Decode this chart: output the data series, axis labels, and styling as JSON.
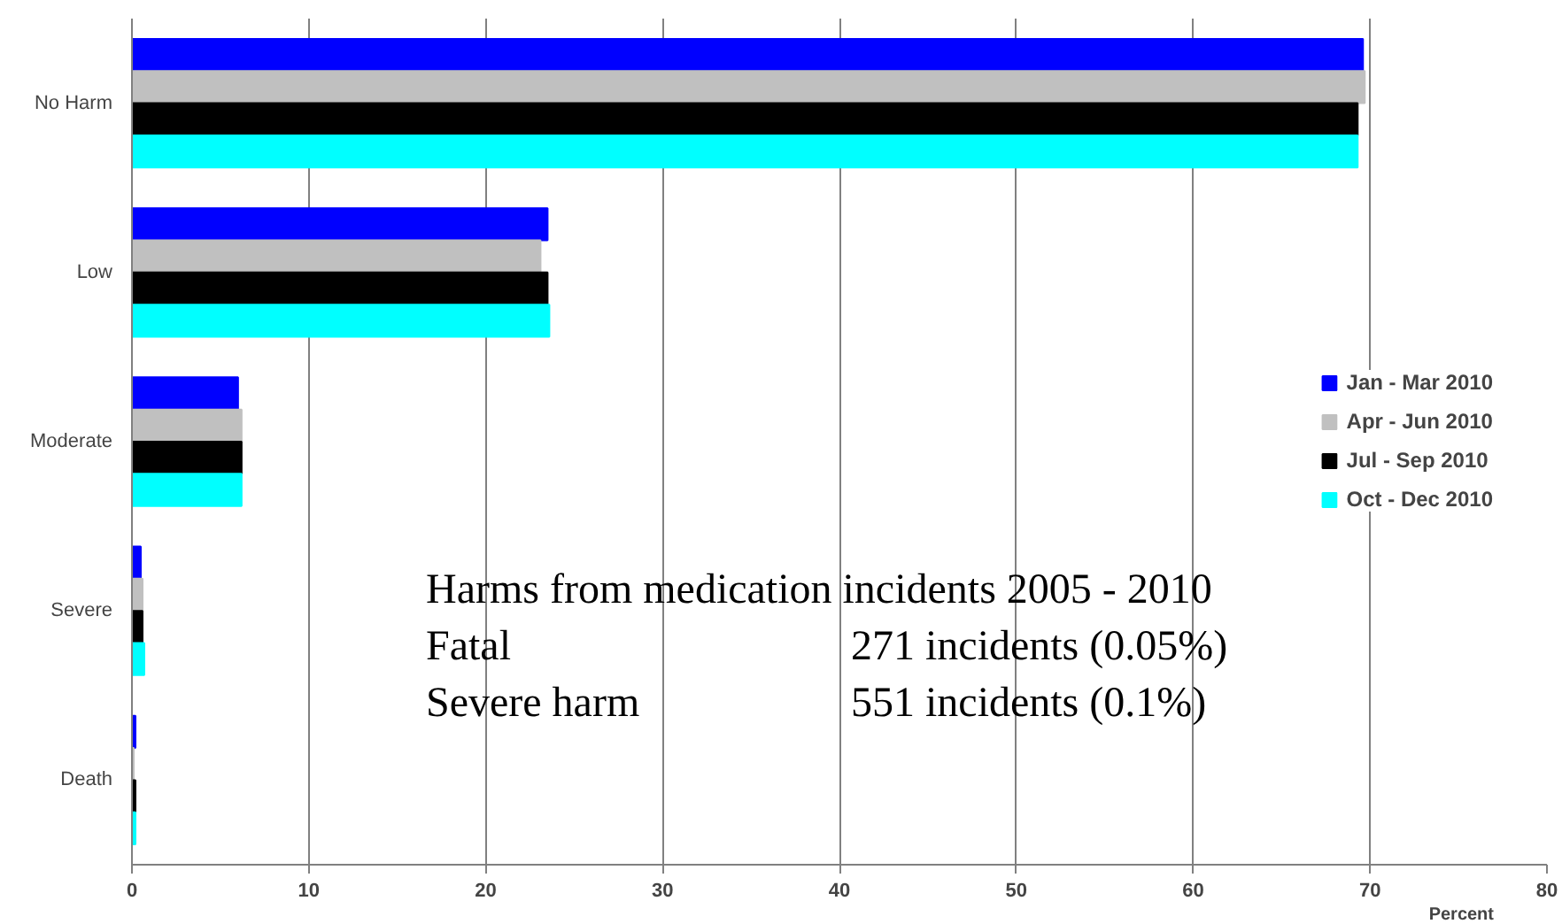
{
  "chart_data": {
    "type": "bar",
    "orientation": "horizontal",
    "categories": [
      "No Harm",
      "Low",
      "Moderate",
      "Severe",
      "Death"
    ],
    "series": [
      {
        "name": "Jan - Mar 2010",
        "color": "#0000ff",
        "values": [
          69.6,
          23.5,
          6.0,
          0.5,
          0.2
        ]
      },
      {
        "name": "Apr - Jun 2010",
        "color": "#c0c0c0",
        "values": [
          69.7,
          23.1,
          6.2,
          0.6,
          0.1
        ]
      },
      {
        "name": "Jul - Sep 2010",
        "color": "#000000",
        "values": [
          69.3,
          23.5,
          6.2,
          0.6,
          0.2
        ]
      },
      {
        "name": "Oct - Dec 2010",
        "color": "#00ffff",
        "values": [
          69.3,
          23.6,
          6.2,
          0.7,
          0.2
        ]
      }
    ],
    "xlabel": "Percent",
    "xlim": [
      0,
      80
    ],
    "xticks": [
      0,
      10,
      20,
      30,
      40,
      50,
      60,
      70,
      80
    ],
    "grid": "x",
    "legend": "right",
    "annotations": [
      "Harms from medication incidents 2005 - 2010",
      "Fatal",
      "271 incidents  (0.05%)",
      "Severe harm",
      "551 incidents  (0.1%)"
    ]
  }
}
